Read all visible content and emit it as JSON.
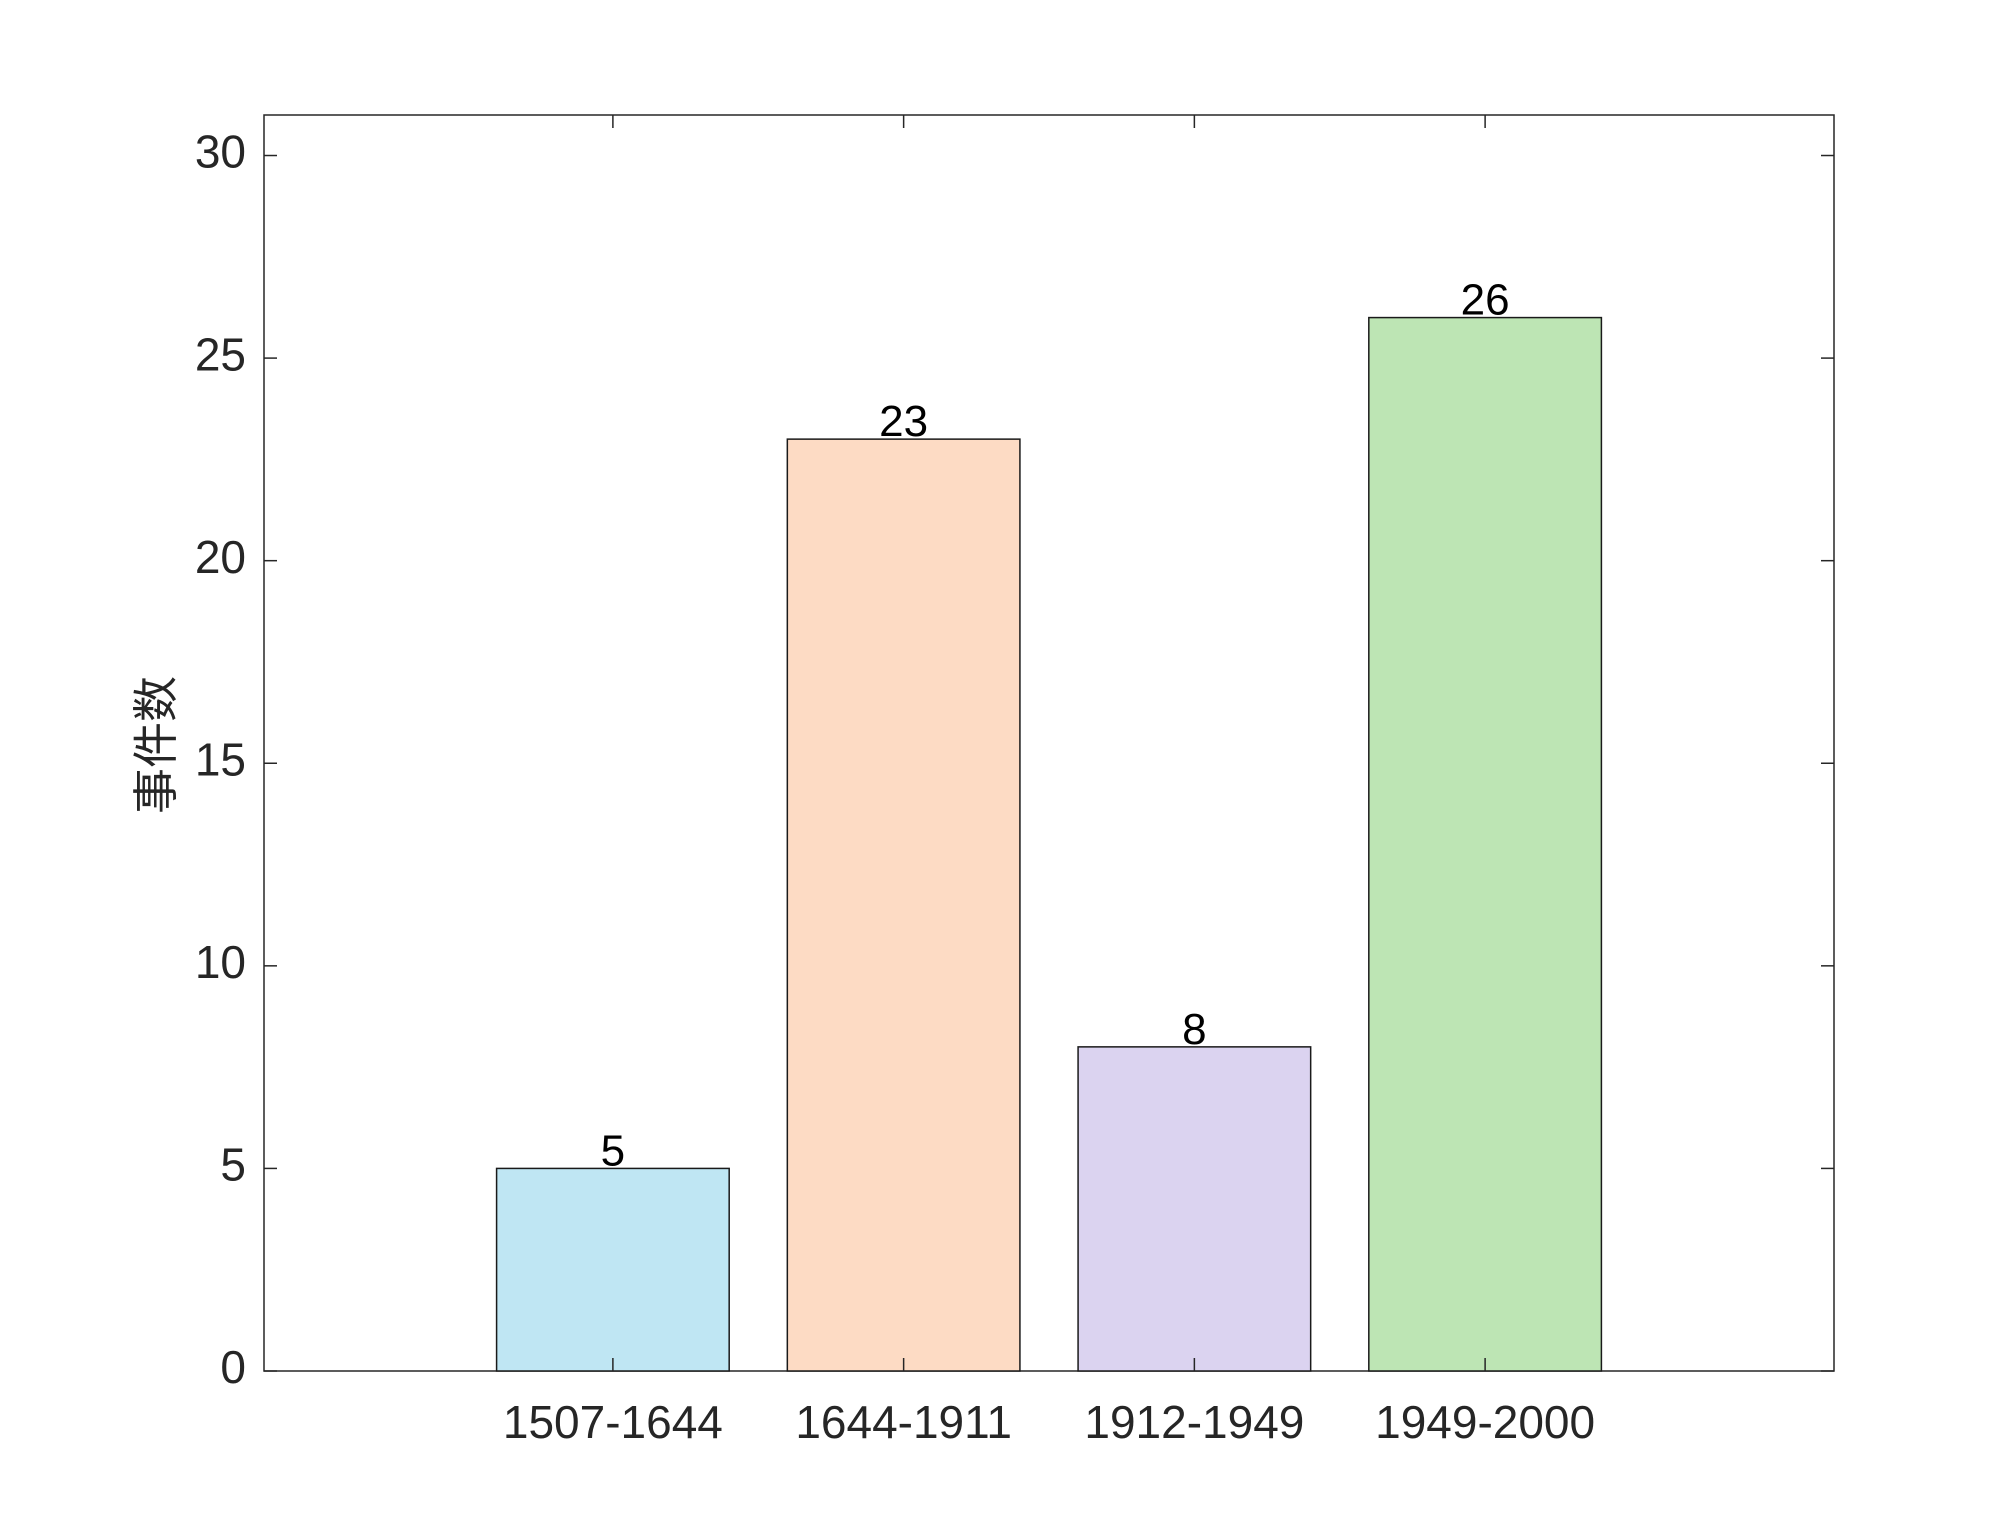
{
  "chart_data": {
    "type": "bar",
    "y_label": "事件数",
    "categories": [
      "1507-1644",
      "1644-1911",
      "1912-1949",
      "1949-2000"
    ],
    "values": [
      5,
      23,
      8,
      26
    ],
    "colors": [
      "#bfe6f3",
      "#fddbc4",
      "#dbd3f0",
      "#bde5b4"
    ],
    "ylim": [
      0,
      31
    ],
    "yticks": [
      0,
      5,
      10,
      15,
      20,
      25,
      30
    ],
    "grid": false
  }
}
